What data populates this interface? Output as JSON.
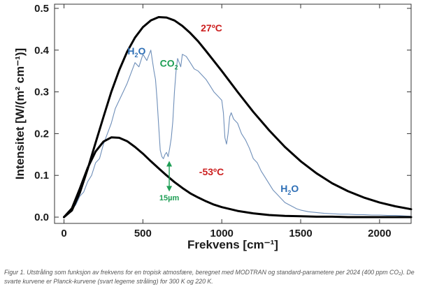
{
  "chart_data": {
    "type": "line",
    "xlabel": "Frekvens [cm⁻¹]",
    "ylabel": "Intensitet [W/(m² cm⁻¹)]",
    "xlim": [
      -60,
      2200
    ],
    "ylim": [
      -0.015,
      0.51
    ],
    "x_ticks": [
      0,
      500,
      1000,
      1500,
      2000
    ],
    "y_ticks": [
      0.0,
      0.1,
      0.2,
      0.3,
      0.4,
      0.5
    ],
    "x_tick_labels": [
      "0",
      "500",
      "1000",
      "1500",
      "2000"
    ],
    "y_tick_labels": [
      "0.0",
      "0.1",
      "0.2",
      "0.3",
      "0.4",
      "0.5"
    ],
    "grid": false,
    "series": [
      {
        "name": "27ºC",
        "color": "#000000",
        "x": [
          0,
          50,
          100,
          150,
          200,
          250,
          300,
          350,
          400,
          450,
          500,
          550,
          600,
          650,
          700,
          750,
          800,
          850,
          900,
          950,
          1000,
          1100,
          1200,
          1300,
          1400,
          1500,
          1600,
          1700,
          1800,
          1900,
          2000,
          2100,
          2200
        ],
        "values": [
          0.0,
          0.016,
          0.058,
          0.115,
          0.178,
          0.24,
          0.3,
          0.352,
          0.396,
          0.43,
          0.455,
          0.471,
          0.479,
          0.478,
          0.471,
          0.458,
          0.441,
          0.421,
          0.398,
          0.374,
          0.35,
          0.3,
          0.252,
          0.208,
          0.168,
          0.134,
          0.105,
          0.081,
          0.062,
          0.047,
          0.035,
          0.026,
          0.019
        ]
      },
      {
        "name": "-53ºC",
        "color": "#000000",
        "x": [
          0,
          50,
          100,
          150,
          200,
          250,
          300,
          350,
          400,
          450,
          500,
          550,
          600,
          650,
          700,
          750,
          800,
          850,
          900,
          950,
          1000,
          1100,
          1200,
          1300,
          1400,
          1500,
          1600,
          1700,
          1800,
          1900,
          2000,
          2100,
          2200
        ],
        "values": [
          0.0,
          0.021,
          0.068,
          0.118,
          0.157,
          0.181,
          0.191,
          0.19,
          0.182,
          0.168,
          0.152,
          0.134,
          0.117,
          0.1,
          0.084,
          0.07,
          0.057,
          0.047,
          0.038,
          0.03,
          0.024,
          0.015,
          0.009,
          0.005,
          0.003,
          0.002,
          0.001,
          0.001,
          0.0,
          0.0,
          0.0,
          0.0,
          0.0
        ]
      },
      {
        "name": "MODTRAN",
        "color": "#6f8fb9",
        "x": [
          0,
          25,
          50,
          75,
          100,
          125,
          150,
          175,
          200,
          225,
          250,
          275,
          300,
          325,
          350,
          375,
          400,
          425,
          450,
          475,
          500,
          525,
          550,
          570,
          580,
          590,
          600,
          610,
          620,
          630,
          640,
          650,
          660,
          670,
          680,
          690,
          700,
          710,
          720,
          730,
          740,
          750,
          775,
          800,
          825,
          850,
          875,
          900,
          925,
          950,
          975,
          1000,
          1010,
          1020,
          1030,
          1040,
          1050,
          1060,
          1075,
          1100,
          1125,
          1150,
          1175,
          1200,
          1225,
          1250,
          1275,
          1300,
          1325,
          1350,
          1375,
          1400,
          1425,
          1450,
          1475,
          1500,
          1550,
          1600,
          1650,
          1700,
          1750,
          1800,
          1850,
          1900,
          1950,
          2000,
          2050,
          2100,
          2150,
          2200
        ],
        "values": [
          0.0,
          0.006,
          0.018,
          0.03,
          0.05,
          0.06,
          0.085,
          0.1,
          0.13,
          0.14,
          0.175,
          0.2,
          0.225,
          0.26,
          0.28,
          0.3,
          0.32,
          0.345,
          0.37,
          0.36,
          0.39,
          0.375,
          0.4,
          0.35,
          0.33,
          0.28,
          0.22,
          0.16,
          0.145,
          0.14,
          0.15,
          0.155,
          0.145,
          0.165,
          0.19,
          0.23,
          0.3,
          0.35,
          0.38,
          0.37,
          0.36,
          0.39,
          0.385,
          0.37,
          0.355,
          0.35,
          0.34,
          0.33,
          0.315,
          0.3,
          0.29,
          0.28,
          0.25,
          0.19,
          0.175,
          0.2,
          0.24,
          0.25,
          0.235,
          0.225,
          0.2,
          0.185,
          0.165,
          0.14,
          0.13,
          0.11,
          0.095,
          0.08,
          0.065,
          0.055,
          0.045,
          0.035,
          0.03,
          0.025,
          0.02,
          0.017,
          0.013,
          0.011,
          0.009,
          0.008,
          0.007,
          0.007,
          0.006,
          0.006,
          0.005,
          0.005,
          0.004,
          0.004,
          0.003,
          0.002
        ]
      }
    ],
    "annotations": [
      {
        "text": "27ºC",
        "color": "#cc1f1f",
        "x": 935,
        "y": 0.445
      },
      {
        "text": "-53ºC",
        "color": "#cc1f1f",
        "x": 935,
        "y": 0.1
      },
      {
        "base": "H",
        "sub": "2",
        "tail": "O",
        "color": "#2e6fb6",
        "x": 460,
        "y": 0.39
      },
      {
        "base": "CO",
        "sub": "2",
        "tail": "",
        "color": "#1e9e55",
        "x": 665,
        "y": 0.36
      },
      {
        "base": "H",
        "sub": "2",
        "tail": "O",
        "color": "#2e6fb6",
        "x": 1430,
        "y": 0.06
      },
      {
        "text": "15µm",
        "color": "#1e9e55",
        "x": 667,
        "y": 0.04
      }
    ],
    "arrow": {
      "color": "#1e9e55",
      "x": 667,
      "y_from": 0.133,
      "y_to": 0.063
    }
  },
  "caption": "Figur 1. Utstråling som funksjon av frekvens for en tropisk atmosfære, beregnet med MODTRAN og standard-parametere per 2024 (400 ppm CO₂). De svarte kurvene er Planck-kurvene (svart legeme stråling) for 300 K og 220 K."
}
